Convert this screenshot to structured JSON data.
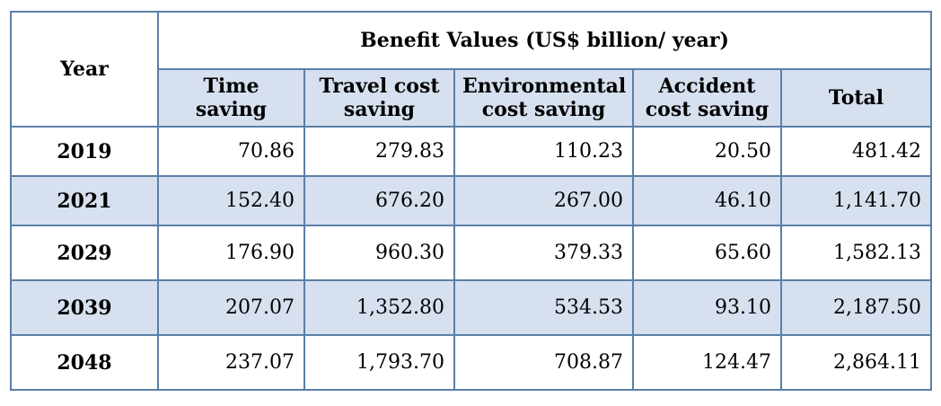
{
  "table": {
    "year_header": "Year",
    "group_header": "Benefit Values (US$ billion/ year)",
    "columns": [
      {
        "line1": "Time",
        "line2": "saving"
      },
      {
        "line1": "Travel cost",
        "line2": "saving"
      },
      {
        "line1": "Environmental",
        "line2": "cost saving"
      },
      {
        "line1": "Accident",
        "line2": "cost saving"
      },
      {
        "line1": "Total",
        "line2": ""
      }
    ],
    "rows": [
      {
        "year": "2019",
        "values": [
          "70.86",
          "279.83",
          "110.23",
          "20.50",
          "481.42"
        ]
      },
      {
        "year": "2021",
        "values": [
          "152.40",
          "676.20",
          "267.00",
          "46.10",
          "1,141.70"
        ]
      },
      {
        "year": "2029",
        "values": [
          "176.90",
          "960.30",
          "379.33",
          "65.60",
          "1,582.13"
        ]
      },
      {
        "year": "2039",
        "values": [
          "207.07",
          "1,352.80",
          "534.53",
          "93.10",
          "2,187.50"
        ]
      },
      {
        "year": "2048",
        "values": [
          "237.07",
          "1,793.70",
          "708.87",
          "124.47",
          "2,864.11"
        ]
      }
    ]
  },
  "colors": {
    "border": "#5b7fa8",
    "band": "#d6e0ef"
  }
}
